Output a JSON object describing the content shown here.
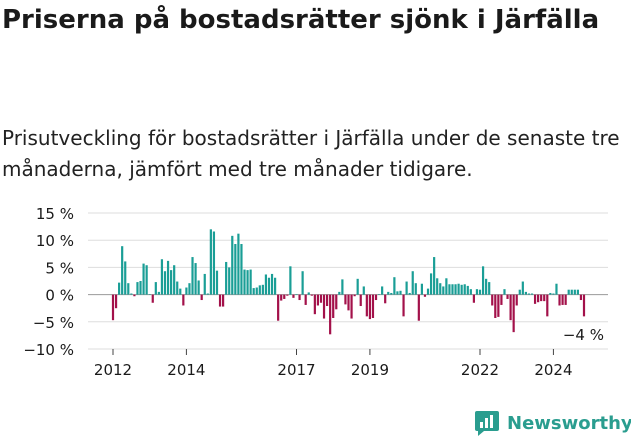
{
  "header": {
    "title": "Priserna på bostadsrätter sjönk i Järfälla",
    "subtitle": "Prisutveckling för bostadsrätter i Järfälla under de senaste tre månaderna, jämfört med tre månader tidigare."
  },
  "brand": {
    "name": "Newsworthy",
    "color": "#2a9d8f",
    "icon": "bar-chart-logo-icon"
  },
  "colors": {
    "positive": "#1a9e96",
    "negative": "#a3114a",
    "grid": "#dddddd",
    "text": "#1a1a1a"
  },
  "chart_data": {
    "type": "bar",
    "title": "",
    "xlabel": "",
    "ylabel": "",
    "ylim": [
      -10,
      15
    ],
    "yticks": [
      15,
      10,
      5,
      0,
      -5,
      -10
    ],
    "ytick_labels": [
      "15 %",
      "10 %",
      "5 %",
      "0 %",
      "−5 %",
      "−10 %"
    ],
    "xticks": [
      {
        "label": "2012",
        "t": 2012.0
      },
      {
        "label": "2014",
        "t": 2014.0
      },
      {
        "label": "2017",
        "t": 2017.0
      },
      {
        "label": "2019",
        "t": 2019.0
      },
      {
        "label": "2022",
        "t": 2022.0
      },
      {
        "label": "2024",
        "t": 2024.0
      }
    ],
    "x_start": 2012.0,
    "x_step_months": 1,
    "grid": true,
    "annotation": {
      "text": "−4 %",
      "value": -4
    },
    "values": [
      -4.7,
      -2.5,
      2.2,
      8.9,
      6.1,
      2.1,
      0.2,
      -0.3,
      2.3,
      2.5,
      5.7,
      5.4,
      0.1,
      -1.5,
      2.3,
      0.5,
      6.5,
      4.3,
      6.2,
      4.5,
      5.4,
      2.4,
      1.1,
      -2.0,
      1.3,
      2.1,
      6.9,
      5.8,
      2.6,
      -1.0,
      3.8,
      0.2,
      12.0,
      11.6,
      4.4,
      -2.2,
      -2.2,
      6.0,
      5.0,
      10.8,
      9.3,
      11.2,
      9.3,
      4.6,
      4.5,
      4.6,
      1.2,
      1.3,
      1.7,
      1.8,
      3.7,
      3.1,
      3.8,
      3.1,
      -4.8,
      -1.1,
      -0.8,
      -0.2,
      5.2,
      -0.6,
      0.1,
      -1.0,
      4.3,
      -1.9,
      0.4,
      -0.2,
      -3.6,
      -2.0,
      -1.5,
      -4.4,
      -2.1,
      -7.3,
      -4.3,
      -2.7,
      0.5,
      2.8,
      -1.8,
      -2.9,
      -4.4,
      -0.3,
      2.9,
      -2.1,
      1.5,
      -4.0,
      -4.5,
      -4.3,
      -1.0,
      0.1,
      1.5,
      -1.6,
      0.5,
      0.3,
      3.2,
      0.6,
      0.7,
      -4.0,
      2.4,
      0.3,
      4.3,
      2.1,
      -4.8,
      2.0,
      -0.4,
      1.1,
      3.9,
      6.9,
      3.0,
      2.1,
      1.5,
      3.0,
      1.9,
      1.9,
      1.9,
      2.0,
      1.8,
      1.9,
      1.6,
      1.0,
      -1.5,
      1.0,
      0.9,
      5.2,
      2.9,
      2.3,
      -2.0,
      -4.3,
      -4.1,
      -1.9,
      1.0,
      -0.8,
      -4.7,
      -6.9,
      -2.0,
      0.9,
      2.4,
      0.5,
      0.2,
      0.2,
      -1.7,
      -1.4,
      -1.2,
      -1.2,
      -4.0,
      0.3,
      0.2,
      2.0,
      -2.0,
      -1.9,
      -1.9,
      0.9,
      0.9,
      0.9,
      0.9,
      -1.0,
      -4.0
    ]
  }
}
